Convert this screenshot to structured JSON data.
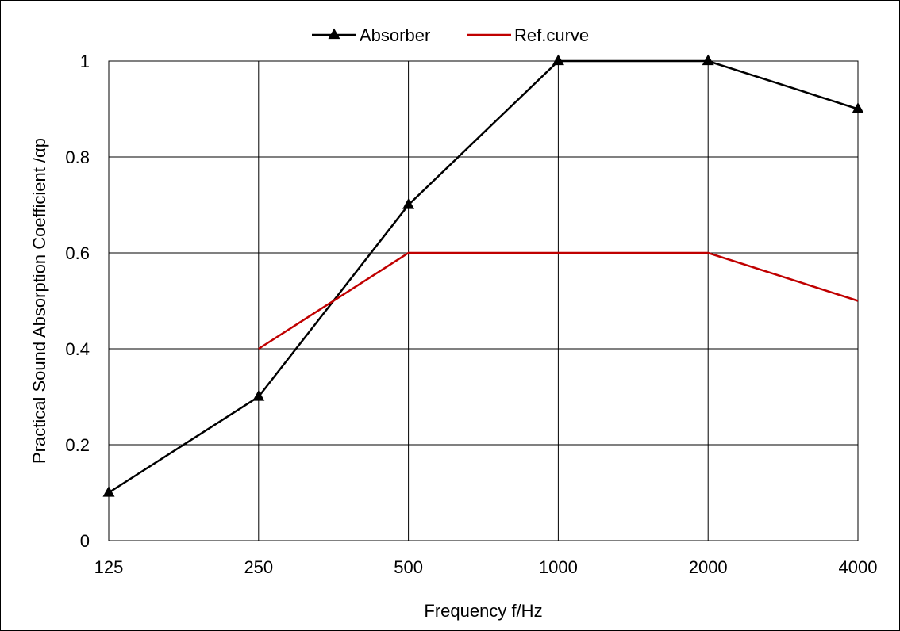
{
  "chart_data": {
    "type": "line",
    "x_scale": "categorical",
    "categories": [
      "125",
      "250",
      "500",
      "1000",
      "2000",
      "4000"
    ],
    "xlabel": "Frequency  f/Hz",
    "ylabel": "Practical Sound Absorption Coefficient /αp",
    "ylim": [
      0,
      1
    ],
    "yticks": [
      "0",
      "0.2",
      "0.4",
      "0.6",
      "0.8",
      "1"
    ],
    "grid": true,
    "legend_position": "top-center",
    "series": [
      {
        "name": "Absorber",
        "color": "#000000",
        "marker": "triangle",
        "values": [
          0.1,
          0.3,
          0.7,
          1.0,
          1.0,
          0.9
        ]
      },
      {
        "name": "Ref.curve",
        "color": "#c00000",
        "marker": "none",
        "values": [
          null,
          0.4,
          0.6,
          0.6,
          0.6,
          0.5
        ]
      }
    ]
  }
}
